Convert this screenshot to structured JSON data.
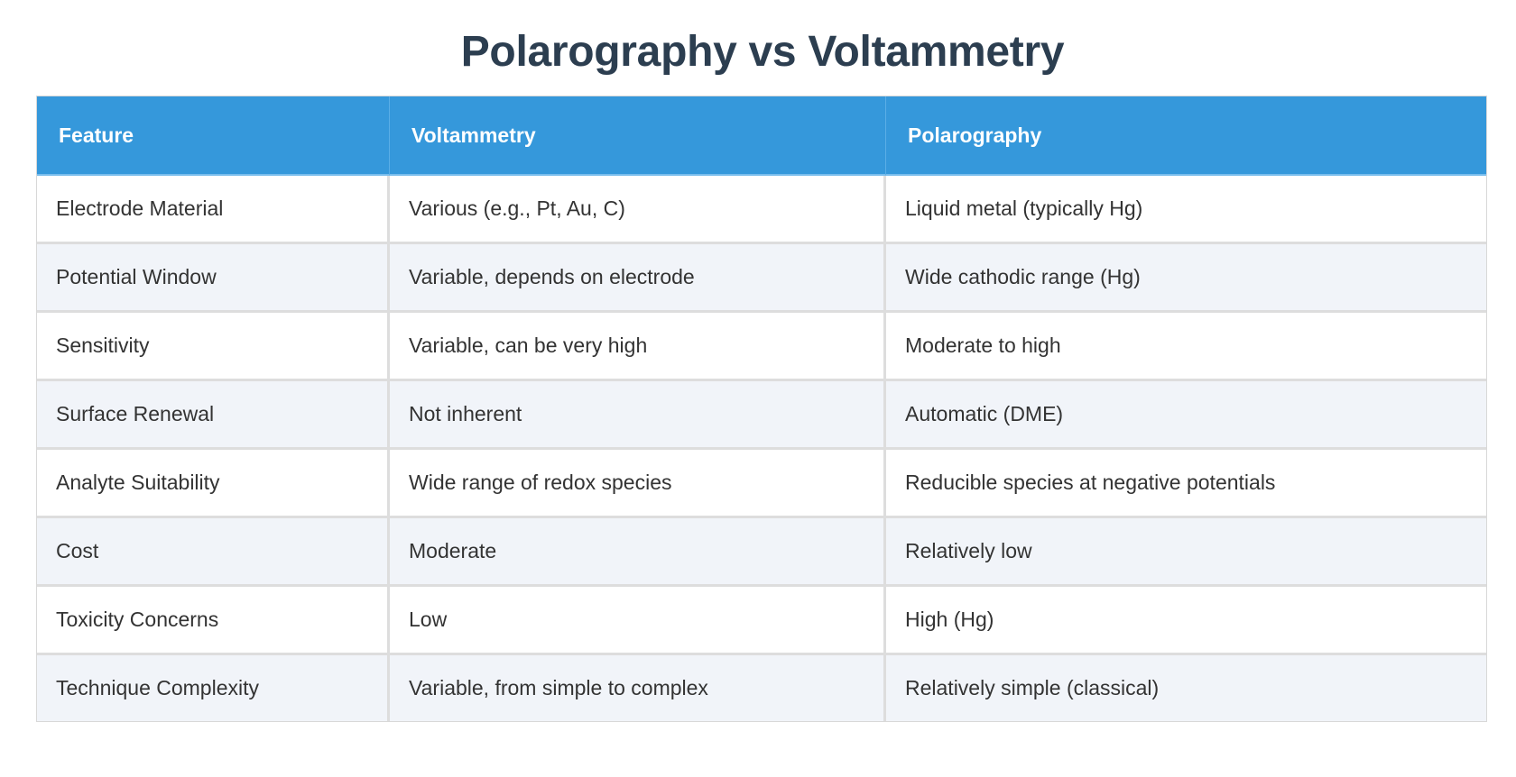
{
  "title": "Polarography vs Voltammetry",
  "colors": {
    "header_bg": "#3598db",
    "title": "#2c3e50",
    "row_alt": "#f1f4f9"
  },
  "table": {
    "headers": [
      "Feature",
      "Voltammetry",
      "Polarography"
    ],
    "rows": [
      [
        "Electrode Material",
        "Various (e.g., Pt, Au, C)",
        "Liquid metal (typically Hg)"
      ],
      [
        "Potential Window",
        "Variable, depends on electrode",
        "Wide cathodic range (Hg)"
      ],
      [
        "Sensitivity",
        "Variable, can be very high",
        "Moderate to high"
      ],
      [
        "Surface Renewal",
        "Not inherent",
        "Automatic (DME)"
      ],
      [
        "Analyte Suitability",
        "Wide range of redox species",
        "Reducible species at negative potentials"
      ],
      [
        "Cost",
        "Moderate",
        "Relatively low"
      ],
      [
        "Toxicity Concerns",
        "Low",
        "High (Hg)"
      ],
      [
        "Technique Complexity",
        "Variable, from simple to complex",
        "Relatively simple (classical)"
      ]
    ]
  }
}
